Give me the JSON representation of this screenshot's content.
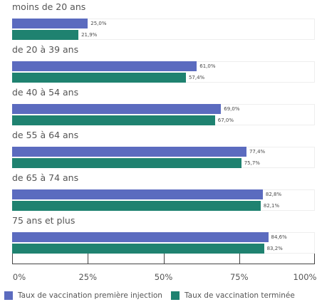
{
  "chart_data": {
    "type": "bar",
    "orientation": "horizontal",
    "categories": [
      "moins de 20 ans",
      "de 20 à 39 ans",
      "de 40 à 54 ans",
      "de 55 à 64 ans",
      "de 65 à 74 ans",
      "75 ans et plus"
    ],
    "series": [
      {
        "name": "Taux de vaccination première injection",
        "color": "#5b6bbf",
        "values": [
          25.0,
          61.0,
          69.0,
          77.4,
          82.8,
          84.6
        ],
        "labels": [
          "25,0%",
          "61,0%",
          "69,0%",
          "77,4%",
          "82,8%",
          "84,6%"
        ]
      },
      {
        "name": "Taux de vaccination terminée",
        "color": "#1f8270",
        "values": [
          21.9,
          57.4,
          67.0,
          75.7,
          82.1,
          83.2
        ],
        "labels": [
          "21,9%",
          "57,4%",
          "67,0%",
          "75,7%",
          "82,1%",
          "83,2%"
        ]
      }
    ],
    "xlim": [
      0,
      100
    ],
    "xticks": [
      0,
      25,
      50,
      75,
      100
    ],
    "xtick_labels": [
      "0%",
      "25%",
      "50%",
      "75%",
      "100%"
    ],
    "grid": false,
    "legend_position": "bottom"
  }
}
